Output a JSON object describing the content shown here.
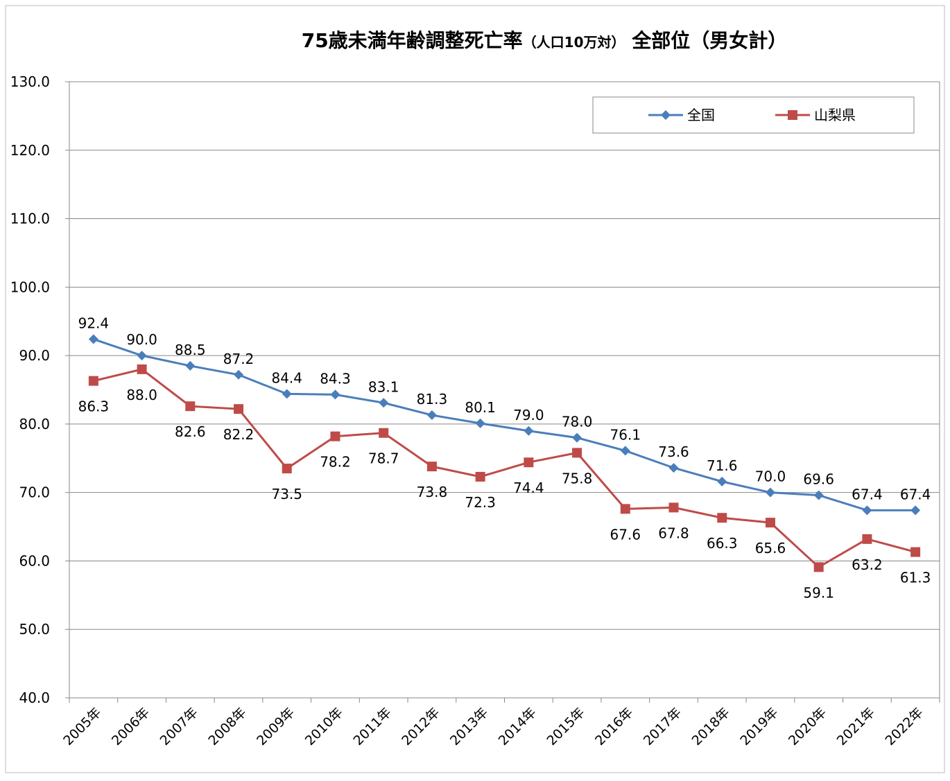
{
  "chart_data": {
    "type": "line",
    "title": [
      "75歳未満年齢調整死亡率",
      "（人口10万対）",
      "  全部位（男女計）"
    ],
    "categories": [
      "2005年",
      "2006年",
      "2007年",
      "2008年",
      "2009年",
      "2010年",
      "2011年",
      "2012年",
      "2013年",
      "2014年",
      "2015年",
      "2016年",
      "2017年",
      "2018年",
      "2019年",
      "2020年",
      "2021年",
      "2022年"
    ],
    "series": [
      {
        "name": "全国",
        "color": "#4a7ebb",
        "marker": "diamond",
        "values": [
          92.4,
          90.0,
          88.5,
          87.2,
          84.4,
          84.3,
          83.1,
          81.3,
          80.1,
          79.0,
          78.0,
          76.1,
          73.6,
          71.6,
          70.0,
          69.6,
          67.4,
          67.4
        ],
        "value_labels": [
          "92.4",
          "90.0",
          "88.5",
          "87.2",
          "84.4",
          "84.3",
          "83.1",
          "81.3",
          "80.1",
          "79.0",
          "78.0",
          "76.1",
          "73.6",
          "71.6",
          "70.0",
          "69.6",
          "67.4",
          "67.4"
        ]
      },
      {
        "name": "山梨県",
        "color": "#be4b48",
        "marker": "square",
        "values": [
          86.3,
          88.0,
          82.6,
          82.2,
          73.5,
          78.2,
          78.7,
          73.8,
          72.3,
          74.4,
          75.8,
          67.6,
          67.8,
          66.3,
          65.6,
          59.1,
          63.2,
          61.3
        ],
        "value_labels": [
          "86.3",
          "88.0",
          "82.6",
          "82.2",
          "73.5",
          "78.2",
          "78.7",
          "73.8",
          "72.3",
          "74.4",
          "75.8",
          "67.6",
          "67.8",
          "66.3",
          "65.6",
          "59.1",
          "63.2",
          "61.3"
        ]
      }
    ],
    "ylim": [
      40,
      130
    ],
    "yticks": [
      {
        "value": 40,
        "label": "40.0"
      },
      {
        "value": 50,
        "label": "50.0"
      },
      {
        "value": 60,
        "label": "60.0"
      },
      {
        "value": 70,
        "label": "70.0"
      },
      {
        "value": 80,
        "label": "80.0"
      },
      {
        "value": 90,
        "label": "90.0"
      },
      {
        "value": 100,
        "label": "100.0"
      },
      {
        "value": 110,
        "label": "110.0"
      },
      {
        "value": 120,
        "label": "120.0"
      },
      {
        "value": 130,
        "label": "130.0"
      }
    ],
    "grid": true,
    "legend": "top-right"
  }
}
